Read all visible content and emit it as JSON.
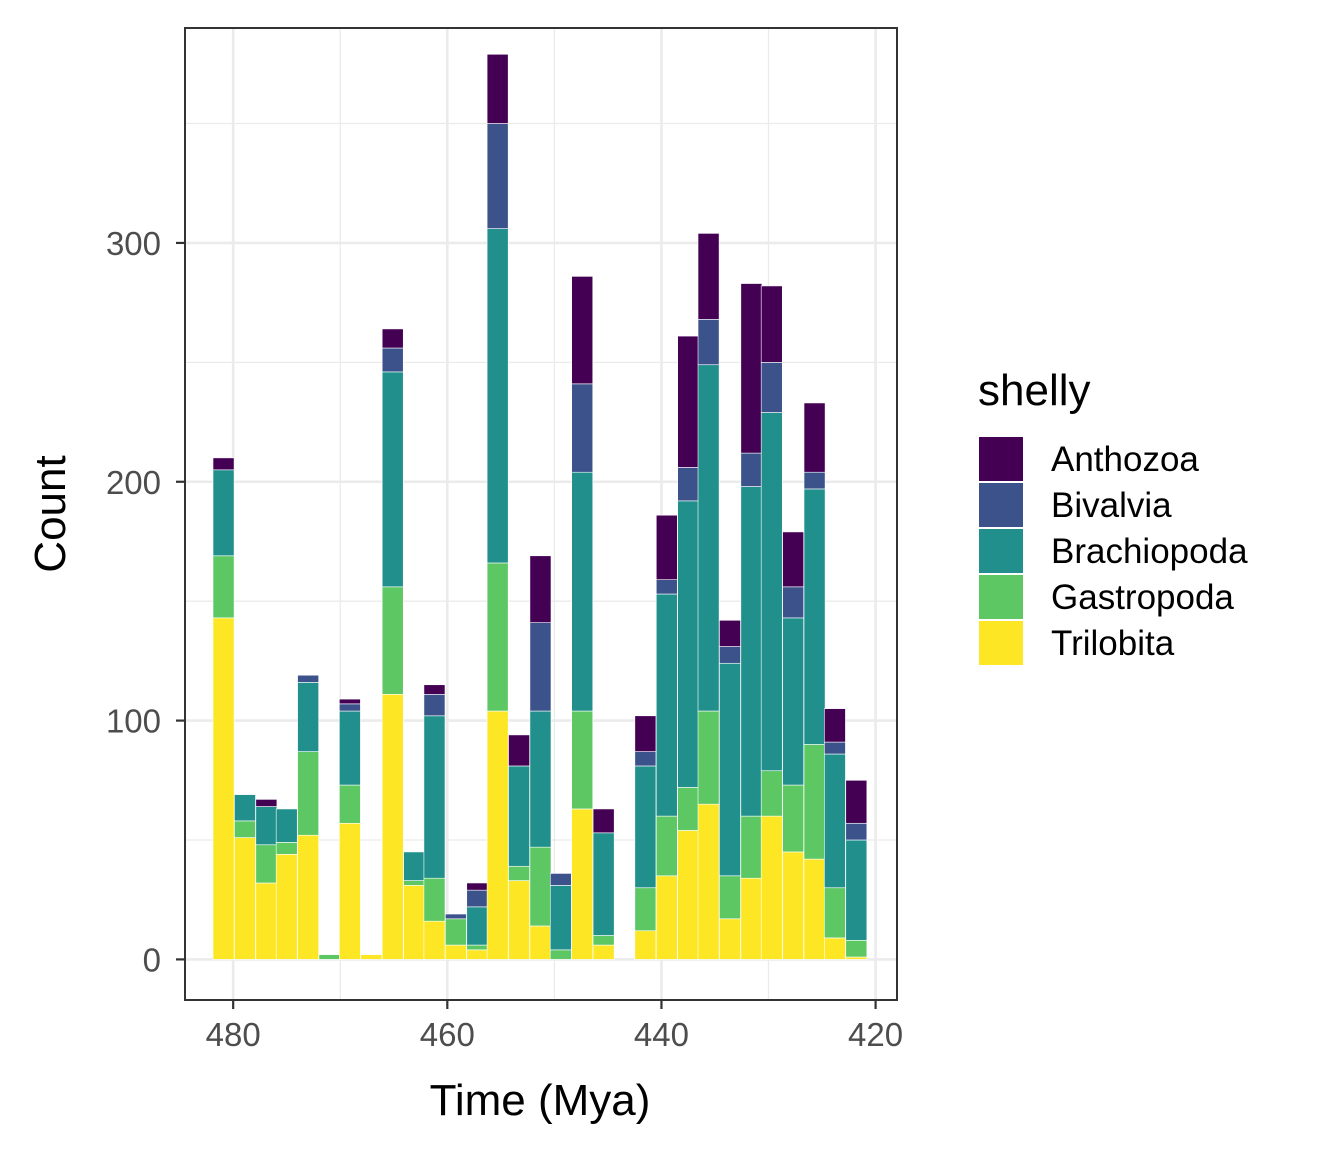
{
  "chart_data": {
    "type": "bar",
    "stacked": true,
    "xlabel": "Time (Mya)",
    "ylabel": "Count",
    "x_reversed": true,
    "xlim": [
      484.5,
      418
    ],
    "ylim": [
      -17,
      390
    ],
    "x_ticks": [
      480,
      460,
      440,
      420
    ],
    "y_ticks": [
      0,
      100,
      200,
      300
    ],
    "bin_width": 1.97,
    "grid": true,
    "legend": {
      "title": "shelly",
      "position": "right",
      "entries": [
        "Anthozoa",
        "Bivalvia",
        "Brachiopoda",
        "Gastropoda",
        "Trilobita"
      ]
    },
    "colors": {
      "Anthozoa": "#440154",
      "Bivalvia": "#3b528b",
      "Brachiopoda": "#21908c",
      "Gastropoda": "#5dc863",
      "Trilobita": "#fde725"
    },
    "x": [
      480.9,
      478.9,
      476.9,
      475.0,
      473.0,
      471.0,
      469.1,
      467.1,
      465.1,
      463.1,
      461.2,
      459.2,
      457.2,
      455.3,
      453.3,
      451.3,
      449.4,
      447.4,
      445.4,
      443.5,
      441.5,
      439.5,
      437.5,
      435.6,
      433.6,
      431.6,
      429.7,
      427.7,
      425.7,
      423.8,
      421.8
    ],
    "series": [
      {
        "name": "Trilobita",
        "values": [
          143,
          51,
          32,
          44,
          52,
          0,
          57,
          2,
          111,
          31,
          16,
          6,
          4,
          104,
          33,
          14,
          0,
          63,
          6,
          0,
          12,
          35,
          54,
          65,
          17,
          34,
          60,
          45,
          42,
          9,
          1
        ]
      },
      {
        "name": "Gastropoda",
        "values": [
          26,
          7,
          16,
          5,
          35,
          2,
          16,
          0,
          45,
          2,
          18,
          11,
          2,
          62,
          6,
          33,
          4,
          41,
          4,
          0,
          18,
          25,
          18,
          39,
          18,
          26,
          19,
          28,
          48,
          21,
          7
        ]
      },
      {
        "name": "Brachiopoda",
        "values": [
          36,
          11,
          16,
          14,
          29,
          0,
          31,
          0,
          90,
          12,
          68,
          0,
          16,
          140,
          42,
          57,
          27,
          100,
          43,
          0,
          51,
          93,
          120,
          145,
          89,
          138,
          150,
          70,
          107,
          56,
          42
        ]
      },
      {
        "name": "Bivalvia",
        "values": [
          0,
          0,
          0,
          0,
          3,
          0,
          3,
          0,
          10,
          0,
          9,
          2,
          7,
          44,
          0,
          37,
          5,
          37,
          0,
          0,
          6,
          6,
          14,
          19,
          7,
          14,
          21,
          13,
          7,
          5,
          7
        ]
      },
      {
        "name": "Anthozoa",
        "values": [
          5,
          0,
          3,
          0,
          0,
          0,
          2,
          0,
          8,
          0,
          4,
          0,
          3,
          29,
          13,
          28,
          0,
          45,
          10,
          0,
          15,
          27,
          55,
          36,
          11,
          71,
          32,
          23,
          29,
          14,
          18
        ]
      }
    ]
  }
}
